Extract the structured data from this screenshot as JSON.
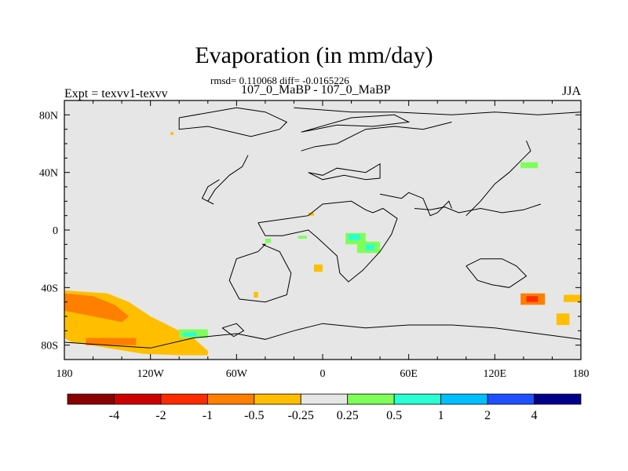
{
  "header": {
    "title": "Evaporation (in mm/day)",
    "stats": "rmsd= 0.110068 diff= -0.0165226",
    "runs": "107_0_MaBP - 107_0_MaBP",
    "expt": "Expt = texvv1-texvv",
    "season": "JJA"
  },
  "chart_data": {
    "type": "heatmap",
    "title": "Evaporation (in mm/day)",
    "subtitle": "107_0_MaBP - 107_0_MaBP",
    "xlabel": "",
    "ylabel": "",
    "xlim": [
      -180,
      180
    ],
    "ylim": [
      -90,
      90
    ],
    "x_ticks": [
      {
        "value": -180,
        "label": "180"
      },
      {
        "value": -120,
        "label": "120W"
      },
      {
        "value": -60,
        "label": "60W"
      },
      {
        "value": 0,
        "label": "0"
      },
      {
        "value": 60,
        "label": "60E"
      },
      {
        "value": 120,
        "label": "120E"
      },
      {
        "value": 180,
        "label": "180"
      }
    ],
    "y_ticks": [
      {
        "value": 80,
        "label": "80N"
      },
      {
        "value": 40,
        "label": "40N"
      },
      {
        "value": 0,
        "label": "0"
      },
      {
        "value": -40,
        "label": "40S"
      },
      {
        "value": -80,
        "label": "80S"
      }
    ],
    "background_color": "#e6e6e6",
    "colorbar": {
      "levels": [
        "-4",
        "-2",
        "-1",
        "-0.5",
        "-0.25",
        "0.25",
        "0.5",
        "1",
        "2",
        "4"
      ],
      "colors": [
        "#8b0000",
        "#cc0000",
        "#ff2a00",
        "#ff7f00",
        "#ffbf00",
        "#e6e6e6",
        "#7fff5a",
        "#2aff d4",
        "#00bfff",
        "#1e50ff",
        "#00008b"
      ]
    },
    "regions": [
      {
        "name": "south-pacific-negative",
        "level": "-0.25",
        "color": "#ffbf00",
        "lon": [
          -180,
          -150,
          -135,
          -120,
          -90,
          -80,
          -80,
          -100,
          -125,
          -150,
          -175,
          -180
        ],
        "lat": [
          -42,
          -44,
          -50,
          -60,
          -75,
          -84,
          -87,
          -87,
          -86,
          -82,
          -78,
          -75
        ]
      },
      {
        "name": "south-pacific-core",
        "level": "-0.5",
        "color": "#ff7f00",
        "lon": [
          -180,
          -160,
          -145,
          -135,
          -140,
          -160,
          -180
        ],
        "lat": [
          -44,
          -46,
          -52,
          -60,
          -64,
          -60,
          -56
        ]
      },
      {
        "name": "south-pacific-band",
        "level": "-0.5",
        "color": "#ff7f00",
        "lon": [
          -165,
          -130,
          -130,
          -165
        ],
        "lat": [
          -75,
          -75,
          -80,
          -80
        ]
      },
      {
        "name": "south-pacific-green",
        "level": "0.25",
        "color": "#7fff5a",
        "lon": [
          -100,
          -80,
          -80,
          -100
        ],
        "lat": [
          -69,
          -69,
          -75,
          -75
        ]
      },
      {
        "name": "south-pacific-cyan",
        "level": "0.5",
        "color": "#2affd4",
        "lon": [
          -97,
          -88,
          -88,
          -97
        ],
        "lat": [
          -71,
          -71,
          -74,
          -74
        ]
      },
      {
        "name": "east-asia-green",
        "level": "0.25",
        "color": "#7fff5a",
        "lon": [
          138,
          150,
          150,
          138
        ],
        "lat": [
          47,
          47,
          43,
          43
        ]
      },
      {
        "name": "australia-south-negative",
        "level": "-0.5",
        "color": "#ff7f00",
        "lon": [
          138,
          155,
          155,
          138
        ],
        "lat": [
          -44,
          -44,
          -52,
          -52
        ]
      },
      {
        "name": "australia-south-core",
        "level": "-1",
        "color": "#ff2a00",
        "lon": [
          142,
          150,
          150,
          142
        ],
        "lat": [
          -46,
          -46,
          -50,
          -50
        ]
      },
      {
        "name": "east-australia-negative",
        "level": "-0.25",
        "color": "#ffbf00",
        "lon": [
          168,
          180,
          180,
          168
        ],
        "lat": [
          -45,
          -45,
          -50,
          -50
        ]
      },
      {
        "name": "nz-negative",
        "level": "-0.25",
        "color": "#ffbf00",
        "lon": [
          163,
          172,
          172,
          163
        ],
        "lat": [
          -58,
          -58,
          -66,
          -66
        ]
      },
      {
        "name": "africa-green-1",
        "level": "0.25",
        "color": "#7fff5a",
        "lon": [
          16,
          30,
          30,
          16
        ],
        "lat": [
          -2,
          -2,
          -10,
          -10
        ]
      },
      {
        "name": "africa-green-2",
        "level": "0.25",
        "color": "#7fff5a",
        "lon": [
          24,
          40,
          40,
          24
        ],
        "lat": [
          -8,
          -8,
          -16,
          -16
        ]
      },
      {
        "name": "africa-cyan-1",
        "level": "0.5",
        "color": "#2affd4",
        "lon": [
          18,
          26,
          26,
          18
        ],
        "lat": [
          -3,
          -3,
          -7,
          -7
        ]
      },
      {
        "name": "africa-cyan-2",
        "level": "0.5",
        "color": "#2affd4",
        "lon": [
          30,
          36,
          36,
          30
        ],
        "lat": [
          -10,
          -10,
          -14,
          -14
        ]
      },
      {
        "name": "africa-green-3",
        "level": "0.25",
        "color": "#7fff5a",
        "lon": [
          -40,
          -36,
          -36,
          -40
        ],
        "lat": [
          -6,
          -6,
          -9,
          -9
        ]
      },
      {
        "name": "africa-green-4",
        "level": "0.25",
        "color": "#7fff5a",
        "lon": [
          -17,
          -11,
          -11,
          -17
        ],
        "lat": [
          -4,
          -4,
          -6,
          -6
        ]
      },
      {
        "name": "africa-orange-1",
        "level": "-0.25",
        "color": "#ffbf00",
        "lon": [
          -6,
          0,
          0,
          -6
        ],
        "lat": [
          -24,
          -24,
          -29,
          -29
        ]
      },
      {
        "name": "africa-orange-2",
        "level": "-0.25",
        "color": "#ffbf00",
        "lon": [
          -10,
          -6,
          -6,
          -10
        ],
        "lat": [
          12,
          12,
          10,
          10
        ]
      },
      {
        "name": "africa-orange-3",
        "level": "-0.25",
        "color": "#ffbf00",
        "lon": [
          -48,
          -45,
          -45,
          -48
        ],
        "lat": [
          -43,
          -43,
          -47,
          -47
        ]
      },
      {
        "name": "arctic-yellow",
        "level": "-0.25",
        "color": "#ffbf00",
        "lon": [
          -106,
          -104,
          -104,
          -106
        ],
        "lat": [
          68,
          68,
          66,
          66
        ]
      }
    ],
    "coastlines": [
      {
        "name": "north-america-arctic",
        "lon": [
          -100,
          -60,
          -40,
          -25,
          -30,
          -50,
          -80,
          -100,
          -100
        ],
        "lat": [
          78,
          85,
          82,
          75,
          70,
          65,
          72,
          70,
          78
        ]
      },
      {
        "name": "north-america-coast",
        "lon": [
          -52,
          -56,
          -65,
          -75,
          -80,
          -76,
          -84,
          -80,
          -72
        ],
        "lat": [
          52,
          44,
          38,
          28,
          20,
          18,
          22,
          30,
          35
        ]
      },
      {
        "name": "greenland",
        "lon": [
          -15,
          20,
          50,
          60,
          35,
          10,
          -5,
          -15
        ],
        "lat": [
          68,
          78,
          80,
          75,
          72,
          73,
          70,
          68
        ]
      },
      {
        "name": "europe-north",
        "lon": [
          -15,
          -5,
          10,
          30,
          50,
          70,
          90
        ],
        "lat": [
          55,
          58,
          60,
          70,
          72,
          70,
          75
        ]
      },
      {
        "name": "eurasia-arctic",
        "lon": [
          -20,
          20,
          50,
          90,
          120,
          150,
          180
        ],
        "lat": [
          85,
          82,
          82,
          80,
          82,
          80,
          82
        ]
      },
      {
        "name": "europe-med",
        "lon": [
          -10,
          0,
          10,
          30,
          40,
          40,
          30,
          15,
          0,
          -10
        ],
        "lat": [
          40,
          38,
          43,
          40,
          46,
          36,
          35,
          38,
          35,
          40
        ]
      },
      {
        "name": "africa",
        "lon": [
          -45,
          -10,
          0,
          20,
          30,
          35,
          42,
          52,
          48,
          40,
          28,
          18,
          12,
          10,
          -4,
          -10,
          -28,
          -40,
          -45
        ],
        "lat": [
          5,
          10,
          18,
          20,
          14,
          12,
          15,
          8,
          -3,
          -15,
          -28,
          -36,
          -30,
          -18,
          -5,
          0,
          -4,
          -4,
          5
        ]
      },
      {
        "name": "arabia-india",
        "lon": [
          40,
          55,
          60,
          70,
          75,
          80,
          88,
          90
        ],
        "lat": [
          25,
          22,
          26,
          22,
          10,
          12,
          20,
          15
        ]
      },
      {
        "name": "asia-east",
        "lon": [
          100,
          110,
          120,
          130,
          140,
          145,
          142
        ],
        "lat": [
          10,
          20,
          32,
          40,
          50,
          55,
          62
        ]
      },
      {
        "name": "southeast-asia",
        "lon": [
          64,
          75,
          85,
          95,
          110,
          125,
          140,
          152
        ],
        "lat": [
          15,
          14,
          16,
          12,
          15,
          12,
          14,
          18
        ]
      },
      {
        "name": "south-america",
        "lon": [
          -42,
          -30,
          -22,
          -25,
          -40,
          -58,
          -65,
          -60,
          -45,
          -40,
          -42
        ],
        "lat": [
          -10,
          -15,
          -30,
          -45,
          -50,
          -48,
          -35,
          -20,
          -15,
          -10,
          -10
        ]
      },
      {
        "name": "antarctica",
        "lon": [
          -180,
          -150,
          -120,
          -90,
          -60,
          -40,
          -20,
          0,
          30,
          60,
          90,
          120,
          150,
          180
        ],
        "lat": [
          -78,
          -80,
          -82,
          -75,
          -72,
          -76,
          -70,
          -65,
          -68,
          -66,
          -66,
          -68,
          -72,
          -76
        ]
      },
      {
        "name": "australia",
        "lon": [
          100,
          110,
          125,
          135,
          142,
          130,
          118,
          108,
          100
        ],
        "lat": [
          -25,
          -20,
          -20,
          -25,
          -32,
          -40,
          -38,
          -35,
          -25
        ]
      },
      {
        "name": "antarctic-peninsula",
        "lon": [
          -70,
          -60,
          -55,
          -62,
          -70
        ],
        "lat": [
          -68,
          -65,
          -70,
          -74,
          -68
        ]
      }
    ]
  }
}
